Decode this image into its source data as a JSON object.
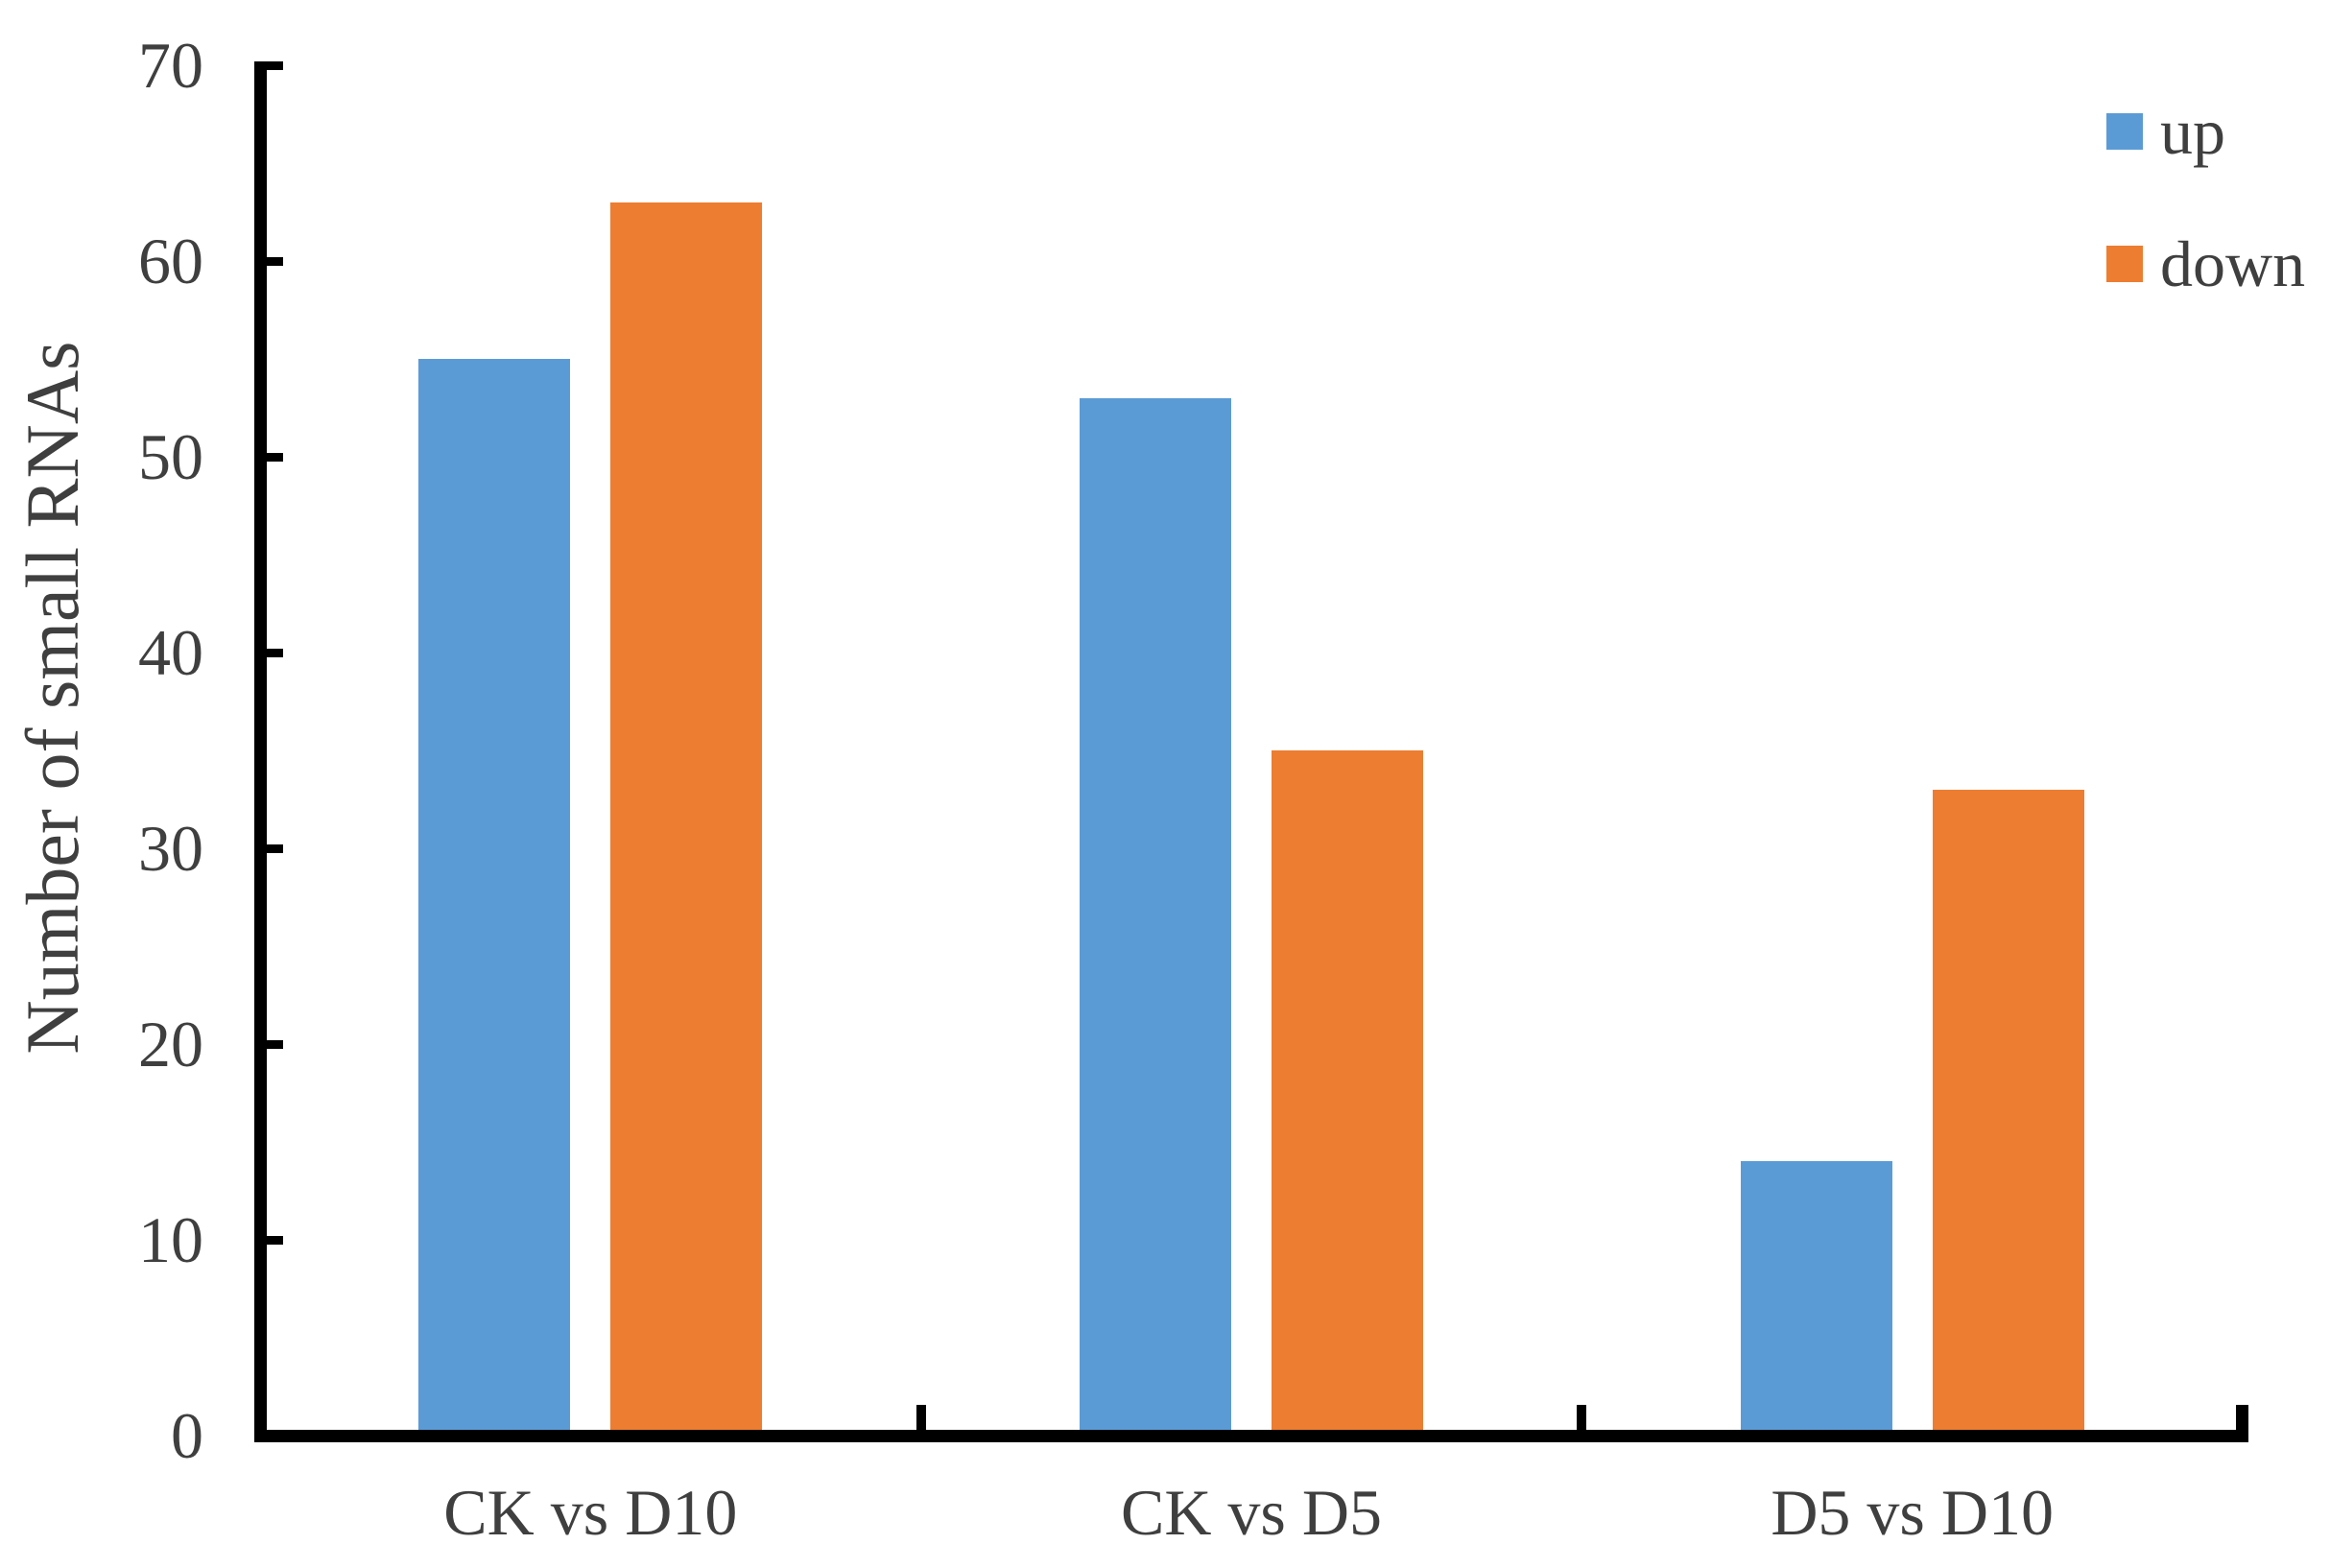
{
  "chart_data": {
    "type": "bar",
    "title": "",
    "categories": [
      "CK vs D10",
      "CK vs D5",
      "D5 vs D10"
    ],
    "series": [
      {
        "name": "up",
        "color": "#5B9BD5",
        "values": [
          55,
          53,
          14
        ]
      },
      {
        "name": "down",
        "color": "#ED7D31",
        "values": [
          63,
          35,
          33
        ]
      }
    ],
    "xlabel": "",
    "ylabel": "Number of small RNAs",
    "ylim": [
      0,
      70
    ],
    "yticks": [
      0,
      10,
      20,
      30,
      40,
      50,
      60,
      70
    ],
    "grid": false,
    "legend": {
      "position": "top-right",
      "entries": [
        "up",
        "down"
      ]
    },
    "axis_color": "#000000",
    "text_color": "#3f3f3f"
  }
}
